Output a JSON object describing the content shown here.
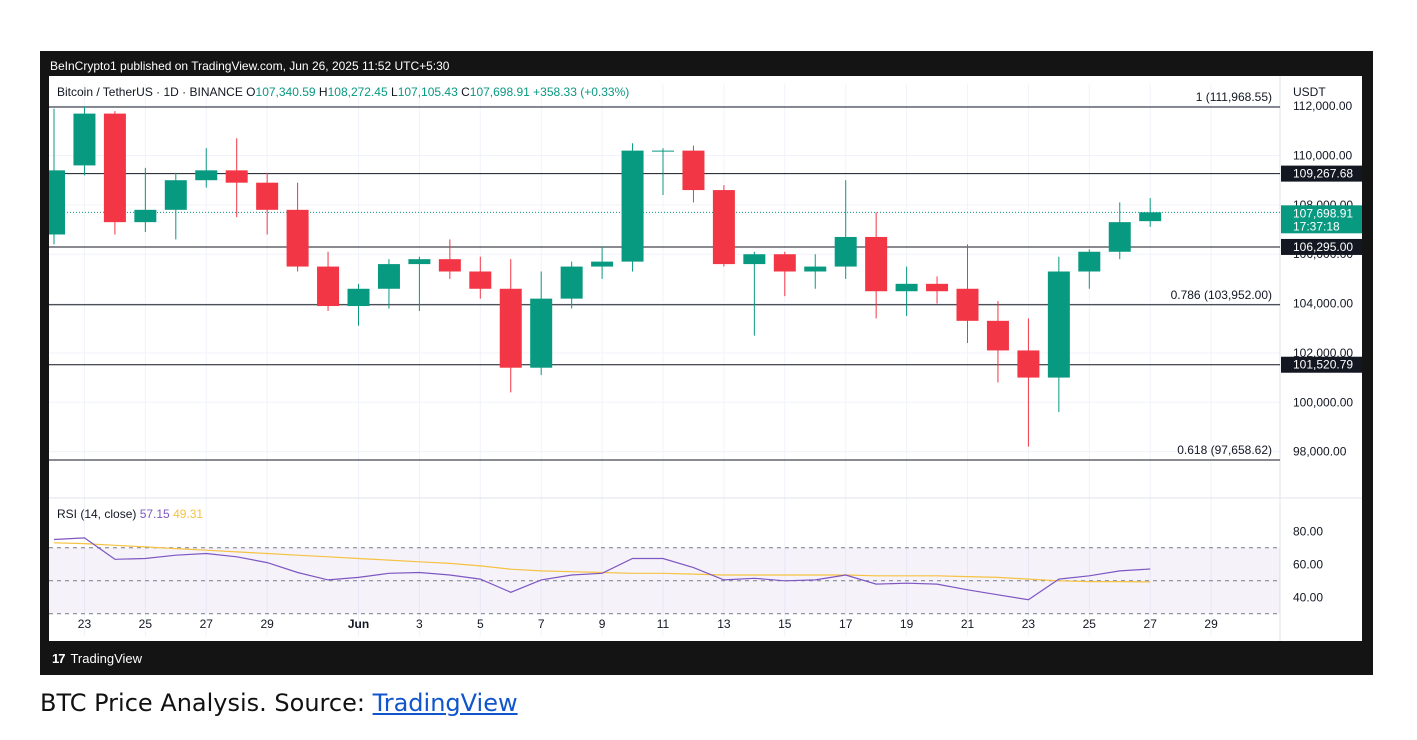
{
  "header": {
    "attribution": "BeInCrypto1 published on TradingView.com, Jun 26, 2025 11:52 UTC+5:30",
    "symbol": "Bitcoin / TetherUS · 1D · BINANCE",
    "ohlc": [
      {
        "key": "O",
        "value": "107,340.59"
      },
      {
        "key": "H",
        "value": "108,272.45"
      },
      {
        "key": "L",
        "value": "107,105.43"
      },
      {
        "key": "C",
        "value": "107,698.91"
      },
      {
        "key": "",
        "value": "+358.33 (+0.33%)"
      }
    ],
    "currency": "USDT"
  },
  "footer": {
    "logo_mark": "17",
    "logo_text": "TradingView"
  },
  "caption": {
    "text": "BTC Price Analysis. Source: ",
    "link": "TradingView"
  },
  "colors": {
    "up": "#089981",
    "down": "#f23645",
    "rsi": "#7e57c2",
    "rsi_ma": "#f5c242",
    "grid": "#f0f3fa",
    "fib_line": "#131722",
    "frame": "#141414"
  },
  "chart_data": {
    "type": "candlestick",
    "price_ylim": [
      96200,
      112900
    ],
    "price_ticks": [
      "112,000.00",
      "110,000.00",
      "108,000.00",
      "106,000.00",
      "104,000.00",
      "102,000.00",
      "100,000.00",
      "98,000.00"
    ],
    "price_tick_values": [
      112000,
      110000,
      108000,
      106000,
      104000,
      102000,
      100000,
      98000
    ],
    "x_labels": [
      {
        "label": "23",
        "index": 1
      },
      {
        "label": "25",
        "index": 3
      },
      {
        "label": "27",
        "index": 5
      },
      {
        "label": "29",
        "index": 7
      },
      {
        "label": "Jun",
        "index": 10
      },
      {
        "label": "3",
        "index": 12
      },
      {
        "label": "5",
        "index": 14
      },
      {
        "label": "7",
        "index": 16
      },
      {
        "label": "9",
        "index": 18
      },
      {
        "label": "11",
        "index": 20
      },
      {
        "label": "13",
        "index": 22
      },
      {
        "label": "15",
        "index": 24
      },
      {
        "label": "17",
        "index": 26
      },
      {
        "label": "19",
        "index": 28
      },
      {
        "label": "21",
        "index": 30
      },
      {
        "label": "23",
        "index": 32
      },
      {
        "label": "25",
        "index": 34
      },
      {
        "label": "27",
        "index": 36
      },
      {
        "label": "29",
        "index": 38
      }
    ],
    "candles": [
      {
        "o": 106800,
        "h": 111900,
        "l": 106400,
        "c": 109400
      },
      {
        "o": 109600,
        "h": 112000,
        "l": 109200,
        "c": 111700
      },
      {
        "o": 111700,
        "h": 111800,
        "l": 106800,
        "c": 107300
      },
      {
        "o": 107300,
        "h": 109500,
        "l": 106900,
        "c": 107800
      },
      {
        "o": 107800,
        "h": 109300,
        "l": 106600,
        "c": 109000
      },
      {
        "o": 109000,
        "h": 110300,
        "l": 108700,
        "c": 109400
      },
      {
        "o": 109400,
        "h": 110700,
        "l": 107500,
        "c": 108900
      },
      {
        "o": 108900,
        "h": 109300,
        "l": 106800,
        "c": 107800
      },
      {
        "o": 107800,
        "h": 108900,
        "l": 105300,
        "c": 105500
      },
      {
        "o": 105500,
        "h": 106100,
        "l": 103700,
        "c": 103900
      },
      {
        "o": 103900,
        "h": 104800,
        "l": 103100,
        "c": 104600
      },
      {
        "o": 104600,
        "h": 105800,
        "l": 103800,
        "c": 105600
      },
      {
        "o": 105600,
        "h": 105900,
        "l": 103700,
        "c": 105800
      },
      {
        "o": 105800,
        "h": 106600,
        "l": 105000,
        "c": 105300
      },
      {
        "o": 105300,
        "h": 105900,
        "l": 104200,
        "c": 104600
      },
      {
        "o": 104600,
        "h": 105800,
        "l": 100400,
        "c": 101400
      },
      {
        "o": 101400,
        "h": 105300,
        "l": 101100,
        "c": 104200
      },
      {
        "o": 104200,
        "h": 105700,
        "l": 103800,
        "c": 105500
      },
      {
        "o": 105500,
        "h": 106300,
        "l": 105000,
        "c": 105700
      },
      {
        "o": 105700,
        "h": 110500,
        "l": 105300,
        "c": 110200
      },
      {
        "o": 110200,
        "h": 110300,
        "l": 108400,
        "c": 110200
      },
      {
        "o": 110200,
        "h": 110400,
        "l": 108100,
        "c": 108600
      },
      {
        "o": 108600,
        "h": 108800,
        "l": 105500,
        "c": 105600
      },
      {
        "o": 105600,
        "h": 106100,
        "l": 102700,
        "c": 106000
      },
      {
        "o": 106000,
        "h": 106100,
        "l": 104300,
        "c": 105300
      },
      {
        "o": 105300,
        "h": 106000,
        "l": 104600,
        "c": 105500
      },
      {
        "o": 105500,
        "h": 109000,
        "l": 105000,
        "c": 106700
      },
      {
        "o": 106700,
        "h": 107700,
        "l": 103400,
        "c": 104500
      },
      {
        "o": 104500,
        "h": 105500,
        "l": 103500,
        "c": 104800
      },
      {
        "o": 104800,
        "h": 105100,
        "l": 104000,
        "c": 104500
      },
      {
        "o": 104600,
        "h": 106400,
        "l": 102400,
        "c": 103300
      },
      {
        "o": 103300,
        "h": 104100,
        "l": 100800,
        "c": 102100
      },
      {
        "o": 102100,
        "h": 103400,
        "l": 98200,
        "c": 101000
      },
      {
        "o": 101000,
        "h": 105900,
        "l": 99600,
        "c": 105300
      },
      {
        "o": 105300,
        "h": 106200,
        "l": 104600,
        "c": 106100
      },
      {
        "o": 106100,
        "h": 108100,
        "l": 105800,
        "c": 107300
      },
      {
        "o": 107340.59,
        "h": 108272.45,
        "l": 107105.43,
        "c": 107698.91
      }
    ],
    "levels": [
      {
        "price": 111968.55,
        "label": "1 (111,968.55)",
        "kind": "fib"
      },
      {
        "price": 109267.68,
        "label": "109,267.68",
        "kind": "marker"
      },
      {
        "price": 106295.0,
        "label": "106,295.00",
        "kind": "marker"
      },
      {
        "price": 103952.0,
        "label": "0.786 (103,952.00)",
        "kind": "fib"
      },
      {
        "price": 101520.79,
        "label": "101,520.79",
        "kind": "marker"
      },
      {
        "price": 97658.62,
        "label": "0.618 (97,658.62)",
        "kind": "fib"
      }
    ],
    "last_price": {
      "price": 107698.91,
      "label": "107,698.91",
      "countdown": "17:37:18"
    },
    "rsi": {
      "title": "RSI (14, close)",
      "value": "57.15",
      "ma_value": "49.31",
      "ylim": [
        25,
        85
      ],
      "ticks": [
        "80.00",
        "60.00",
        "40.00"
      ],
      "tick_values": [
        80,
        60,
        40
      ],
      "band_upper": 70,
      "band_lower": 30,
      "band_mid": 50,
      "line": [
        75,
        76,
        63,
        63.5,
        65.5,
        66.5,
        64.5,
        61,
        55,
        50.5,
        52,
        54.5,
        55,
        53.5,
        51,
        43,
        50.5,
        53.5,
        54.5,
        63.5,
        63.5,
        58,
        50.5,
        51.5,
        50,
        50.5,
        53.5,
        48,
        48.5,
        48,
        44.5,
        41.5,
        38.5,
        51,
        53,
        56,
        57.15
      ],
      "ma": [
        73,
        72.5,
        71.5,
        70.5,
        69.5,
        68.5,
        67.5,
        66.5,
        65.5,
        64.5,
        63.5,
        62.5,
        61.5,
        60.5,
        59,
        57,
        56,
        55.5,
        55,
        54.5,
        54.5,
        54,
        53.5,
        53.5,
        53.5,
        53.5,
        53.5,
        53,
        53,
        53,
        52.5,
        52,
        51,
        50,
        49.5,
        49.5,
        49.31
      ]
    }
  }
}
